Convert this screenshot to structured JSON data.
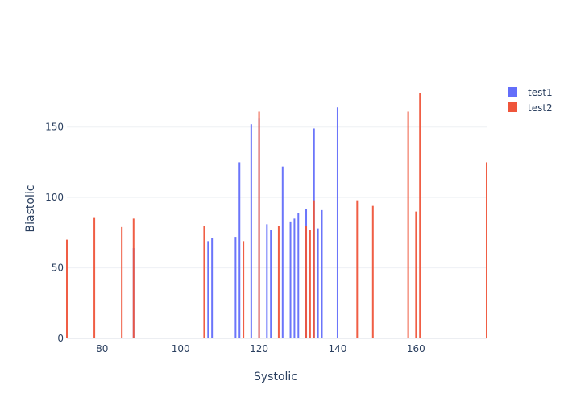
{
  "colors": {
    "test1": "#636efa",
    "test2": "#ef553b",
    "text": "#2a3f5f",
    "grid": "#eef0f4"
  },
  "chart_data": {
    "type": "bar",
    "xlabel": "Systolic",
    "ylabel": "Biastolic",
    "xlim": [
      71,
      178
    ],
    "ylim": [
      0,
      183
    ],
    "x_ticks": [
      80,
      100,
      120,
      140,
      160
    ],
    "y_ticks": [
      0,
      50,
      100,
      150
    ],
    "grid": true,
    "legend_placement": "top-right",
    "series": [
      {
        "name": "test1",
        "color": "#636efa",
        "points": [
          {
            "x": 88,
            "y": 64
          },
          {
            "x": 107,
            "y": 69
          },
          {
            "x": 108,
            "y": 71
          },
          {
            "x": 114,
            "y": 72
          },
          {
            "x": 115,
            "y": 125
          },
          {
            "x": 118,
            "y": 152
          },
          {
            "x": 120,
            "y": 156
          },
          {
            "x": 122,
            "y": 81
          },
          {
            "x": 123,
            "y": 77
          },
          {
            "x": 126,
            "y": 122
          },
          {
            "x": 128,
            "y": 83
          },
          {
            "x": 129,
            "y": 85
          },
          {
            "x": 130,
            "y": 89
          },
          {
            "x": 132,
            "y": 92
          },
          {
            "x": 134,
            "y": 149
          },
          {
            "x": 135,
            "y": 78
          },
          {
            "x": 136,
            "y": 91
          },
          {
            "x": 140,
            "y": 164
          }
        ]
      },
      {
        "name": "test2",
        "color": "#ef553b",
        "points": [
          {
            "x": 71,
            "y": 70
          },
          {
            "x": 78,
            "y": 86
          },
          {
            "x": 85,
            "y": 79
          },
          {
            "x": 88,
            "y": 85
          },
          {
            "x": 106,
            "y": 80
          },
          {
            "x": 116,
            "y": 69
          },
          {
            "x": 120,
            "y": 161
          },
          {
            "x": 125,
            "y": 80
          },
          {
            "x": 132,
            "y": 80
          },
          {
            "x": 133,
            "y": 77
          },
          {
            "x": 134,
            "y": 98
          },
          {
            "x": 145,
            "y": 98
          },
          {
            "x": 149,
            "y": 94
          },
          {
            "x": 158,
            "y": 161
          },
          {
            "x": 160,
            "y": 90
          },
          {
            "x": 161,
            "y": 174
          },
          {
            "x": 178,
            "y": 125
          }
        ]
      }
    ]
  }
}
